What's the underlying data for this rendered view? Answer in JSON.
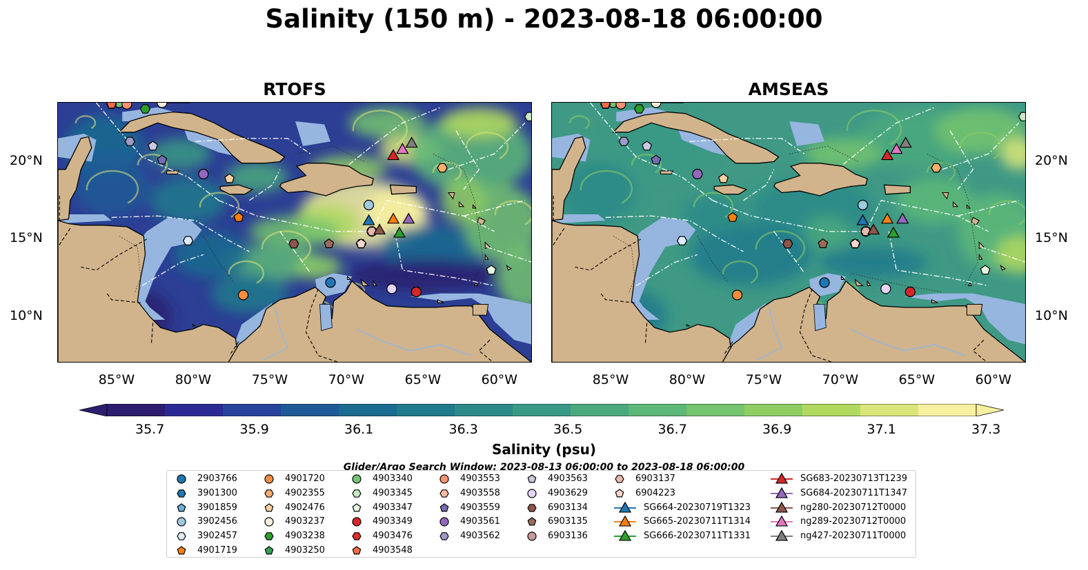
{
  "title": "Salinity (150 m) - 2023-08-18 06:00:00",
  "panels": [
    {
      "title": "RTOFS"
    },
    {
      "title": "AMSEAS"
    }
  ],
  "x_ticks": [
    "85°W",
    "80°W",
    "75°W",
    "70°W",
    "65°W",
    "60°W"
  ],
  "y_ticks": [
    "20°N",
    "15°N",
    "10°N"
  ],
  "colorbar": {
    "title": "Salinity (psu)",
    "tick_labels": [
      "35.7",
      "35.9",
      "36.1",
      "36.3",
      "36.5",
      "36.7",
      "36.9",
      "37.1",
      "37.3"
    ],
    "colors": [
      "#2c1d6e",
      "#2b2a94",
      "#27439c",
      "#1f5a96",
      "#1a6b8f",
      "#1f7a8c",
      "#2b8a88",
      "#3a9984",
      "#4ba97e",
      "#5db878",
      "#74c36e",
      "#8fcd63",
      "#b2d95f",
      "#dbe67a",
      "#f7f0a0"
    ]
  },
  "search_window": "Glider/Argo Search Window: 2023-08-13 06:00:00 to 2023-08-18 06:00:00",
  "legend": {
    "columns": [
      [
        {
          "label": "2903766",
          "color": "#1f77b4",
          "marker": "circle"
        },
        {
          "label": "3901300",
          "color": "#1f77b4",
          "marker": "hexagon"
        },
        {
          "label": "3901859",
          "color": "#6baed6",
          "marker": "pentagon"
        },
        {
          "label": "3902456",
          "color": "#9ecae1",
          "marker": "circle"
        },
        {
          "label": "3902457",
          "color": "#deebf7",
          "marker": "hexagon"
        },
        {
          "label": "4901719",
          "color": "#ff7f0e",
          "marker": "pentagon"
        }
      ],
      [
        {
          "label": "4901720",
          "color": "#fd8d3c",
          "marker": "circle"
        },
        {
          "label": "4902355",
          "color": "#fdae6b",
          "marker": "hexagon"
        },
        {
          "label": "4902476",
          "color": "#fdd0a2",
          "marker": "pentagon"
        },
        {
          "label": "4903237",
          "color": "#feeedc",
          "marker": "circle"
        },
        {
          "label": "4903238",
          "color": "#2ca02c",
          "marker": "hexagon"
        },
        {
          "label": "4903250",
          "color": "#31a354",
          "marker": "pentagon"
        }
      ],
      [
        {
          "label": "4903340",
          "color": "#74c476",
          "marker": "circle"
        },
        {
          "label": "4903345",
          "color": "#c7e9c0",
          "marker": "hexagon"
        },
        {
          "label": "4903347",
          "color": "#e5f5e0",
          "marker": "pentagon"
        },
        {
          "label": "4903349",
          "color": "#d62728",
          "marker": "circle"
        },
        {
          "label": "4903476",
          "color": "#de2d26",
          "marker": "hexagon"
        },
        {
          "label": "4903548",
          "color": "#fb6a4a",
          "marker": "pentagon"
        }
      ],
      [
        {
          "label": "4903553",
          "color": "#fc9272",
          "marker": "circle"
        },
        {
          "label": "4903558",
          "color": "#fcbba1",
          "marker": "hexagon"
        },
        {
          "label": "4903559",
          "color": "#756bb1",
          "marker": "pentagon"
        },
        {
          "label": "4903561",
          "color": "#9467bd",
          "marker": "circle"
        },
        {
          "label": "4903562",
          "color": "#9e9ac8",
          "marker": "hexagon"
        }
      ],
      [
        {
          "label": "4903563",
          "color": "#cbc9e2",
          "marker": "pentagon"
        },
        {
          "label": "4903629",
          "color": "#e5d4f5",
          "marker": "circle"
        },
        {
          "label": "6903134",
          "color": "#8c564b",
          "marker": "hexagon"
        },
        {
          "label": "6903135",
          "color": "#9b6b5e",
          "marker": "pentagon"
        },
        {
          "label": "6903136",
          "color": "#c49c94",
          "marker": "circle"
        }
      ],
      [
        {
          "label": "6903137",
          "color": "#e7b9ae",
          "marker": "hexagon"
        },
        {
          "label": "6904223",
          "color": "#f7d6cf",
          "marker": "pentagon"
        },
        {
          "label": "SG664-20230719T1323",
          "color": "#1f77b4",
          "marker": "triangle-line"
        },
        {
          "label": "SG665-20230711T1314",
          "color": "#ff7f0e",
          "marker": "triangle-line"
        },
        {
          "label": "SG666-20230711T1331",
          "color": "#2ca02c",
          "marker": "triangle-line"
        }
      ],
      [
        {
          "label": "SG683-20230713T1239",
          "color": "#d62728",
          "marker": "triangle-line"
        },
        {
          "label": "SG684-20230711T1347",
          "color": "#9467bd",
          "marker": "triangle-line"
        },
        {
          "label": "ng280-20230712T0000",
          "color": "#8c564b",
          "marker": "triangle-line"
        },
        {
          "label": "ng289-20230712T0000",
          "color": "#e377c2",
          "marker": "triangle-line"
        },
        {
          "label": "ng427-20230711T0000",
          "color": "#7f7f7f",
          "marker": "triangle-line"
        }
      ]
    ]
  },
  "map_colors": {
    "land": "#d1b48c",
    "shelf": "#96b6e0",
    "rtofs_base": "#2c3f94",
    "amseas_base": "#3f9985"
  },
  "stations": [
    {
      "label": "2903766",
      "lon": -71.2,
      "lat": 12.2,
      "color": "#1f77b4",
      "marker": "circle"
    },
    {
      "label": "3901300",
      "lon": -80.5,
      "lat": 14.9,
      "color": "#1f77b4",
      "marker": "hexagon"
    },
    {
      "label": "3901859",
      "lon": -85.0,
      "lat": 23.8,
      "color": "#6baed6",
      "marker": "pentagon"
    },
    {
      "label": "3902456",
      "lon": -68.7,
      "lat": 17.2,
      "color": "#9ecae1",
      "marker": "circle"
    },
    {
      "label": "3902457",
      "lon": -80.5,
      "lat": 14.9,
      "color": "#deebf7",
      "marker": "hexagon"
    },
    {
      "label": "4901719",
      "lon": -77.2,
      "lat": 16.4,
      "color": "#ff7f0e",
      "marker": "pentagon"
    },
    {
      "label": "4901720",
      "lon": -76.9,
      "lat": 11.4,
      "color": "#fd8d3c",
      "marker": "circle"
    },
    {
      "label": "4902355",
      "lon": -63.9,
      "lat": 19.6,
      "color": "#fdae6b",
      "marker": "hexagon"
    },
    {
      "label": "4902476",
      "lon": -77.8,
      "lat": 18.9,
      "color": "#fdd0a2",
      "marker": "pentagon"
    },
    {
      "label": "4903237",
      "lon": -82.2,
      "lat": 23.8,
      "color": "#feeedc",
      "marker": "circle"
    },
    {
      "label": "4903238",
      "lon": -83.3,
      "lat": 23.4,
      "color": "#2ca02c",
      "marker": "hexagon"
    },
    {
      "label": "4903250",
      "lon": -85.0,
      "lat": 23.8,
      "color": "#31a354",
      "marker": "pentagon"
    },
    {
      "label": "4903340",
      "lon": -85.0,
      "lat": 23.8,
      "color": "#74c476",
      "marker": "circle"
    },
    {
      "label": "4903345",
      "lon": -58.2,
      "lat": 22.9,
      "color": "#c7e9c0",
      "marker": "hexagon"
    },
    {
      "label": "4903347",
      "lon": -60.7,
      "lat": 13.0,
      "color": "#e5f5e0",
      "marker": "pentagon"
    },
    {
      "label": "4903349",
      "lon": -65.6,
      "lat": 11.6,
      "color": "#d62728",
      "marker": "circle"
    },
    {
      "label": "4903476",
      "lon": -85.5,
      "lat": 23.7,
      "color": "#de2d26",
      "marker": "hexagon"
    },
    {
      "label": "4903548",
      "lon": -85.5,
      "lat": 23.7,
      "color": "#fb6a4a",
      "marker": "pentagon"
    },
    {
      "label": "4903553",
      "lon": -84.5,
      "lat": 23.7,
      "color": "#fc9272",
      "marker": "circle"
    },
    {
      "label": "4903558",
      "lon": -69.2,
      "lat": 14.7,
      "color": "#fcbba1",
      "marker": "hexagon"
    },
    {
      "label": "4903559",
      "lon": -82.2,
      "lat": 20.1,
      "color": "#756bb1",
      "marker": "pentagon"
    },
    {
      "label": "4903561",
      "lon": -79.5,
      "lat": 19.2,
      "color": "#9467bd",
      "marker": "circle"
    },
    {
      "label": "4903562",
      "lon": -84.3,
      "lat": 21.3,
      "color": "#9e9ac8",
      "marker": "hexagon"
    },
    {
      "label": "4903563",
      "lon": -82.8,
      "lat": 21.0,
      "color": "#cbc9e2",
      "marker": "pentagon"
    },
    {
      "label": "4903629",
      "lon": -67.2,
      "lat": 11.8,
      "color": "#e5d4f5",
      "marker": "circle"
    },
    {
      "label": "6903134",
      "lon": -73.6,
      "lat": 14.7,
      "color": "#8c564b",
      "marker": "hexagon"
    },
    {
      "label": "6903135",
      "lon": -71.3,
      "lat": 14.7,
      "color": "#9b6b5e",
      "marker": "pentagon"
    },
    {
      "label": "6903136",
      "lon": -68.5,
      "lat": 15.5,
      "color": "#c49c94",
      "marker": "circle"
    },
    {
      "label": "6903137",
      "lon": -68.5,
      "lat": 15.5,
      "color": "#e7b9ae",
      "marker": "hexagon"
    },
    {
      "label": "6904223",
      "lon": -69.2,
      "lat": 14.7,
      "color": "#f7d6cf",
      "marker": "pentagon"
    },
    {
      "label": "SG664-20230719T1323",
      "lon": -68.7,
      "lat": 16.2,
      "color": "#1f77b4",
      "marker": "triangle"
    },
    {
      "label": "SG665-20230711T1314",
      "lon": -67.1,
      "lat": 16.3,
      "color": "#ff7f0e",
      "marker": "triangle"
    },
    {
      "label": "SG666-20230711T1331",
      "lon": -66.7,
      "lat": 15.4,
      "color": "#2ca02c",
      "marker": "triangle"
    },
    {
      "label": "SG683-20230713T1239",
      "lon": -67.1,
      "lat": 20.4,
      "color": "#d62728",
      "marker": "triangle"
    },
    {
      "label": "SG684-20230711T1347",
      "lon": -66.1,
      "lat": 16.3,
      "color": "#9467bd",
      "marker": "triangle"
    },
    {
      "label": "ng280-20230712T0000",
      "lon": -68.0,
      "lat": 15.6,
      "color": "#8c564b",
      "marker": "triangle"
    },
    {
      "label": "ng289-20230712T0000",
      "lon": -66.5,
      "lat": 20.8,
      "color": "#e377c2",
      "marker": "triangle"
    },
    {
      "label": "ng427-20230711T0000",
      "lon": -65.9,
      "lat": 21.2,
      "color": "#7f7f7f",
      "marker": "triangle"
    }
  ]
}
